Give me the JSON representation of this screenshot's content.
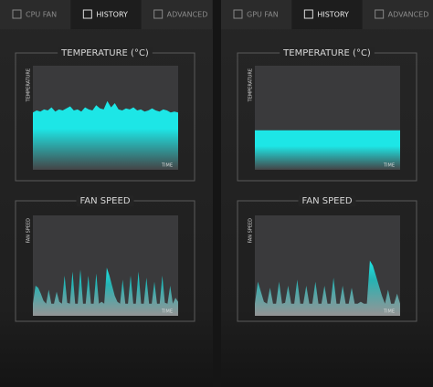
{
  "panels": [
    {
      "tabs": [
        "CPU FAN",
        "HISTORY",
        "ADVANCED"
      ],
      "active": 1
    },
    {
      "tabs": [
        "GPU FAN",
        "HISTORY",
        "ADVANCED"
      ],
      "active": 1
    }
  ],
  "chart_data": [
    {
      "type": "area",
      "title": "TEMPERATURE (°C)",
      "ylabel": "TEMPERATURE",
      "xlabel": "TIME",
      "ylim": [
        0,
        100
      ],
      "color": "#1de6e6",
      "values": [
        55,
        57,
        56,
        58,
        57,
        60,
        56,
        58,
        57,
        59,
        61,
        57,
        58,
        56,
        60,
        58,
        57,
        62,
        59,
        58,
        66,
        60,
        64,
        58,
        57,
        59,
        58,
        60,
        57,
        58,
        56,
        57,
        59,
        57,
        56,
        58,
        57,
        55,
        56,
        55
      ]
    },
    {
      "type": "area",
      "title": "FAN SPEED",
      "ylabel": "FAN SPEED",
      "xlabel": "TIME",
      "ylim": [
        0,
        100
      ],
      "color": "#1de6e6",
      "values": [
        12,
        30,
        28,
        22,
        15,
        12,
        26,
        12,
        12,
        24,
        14,
        12,
        40,
        13,
        12,
        44,
        12,
        12,
        46,
        12,
        12,
        40,
        12,
        12,
        42,
        12,
        14,
        12,
        48,
        40,
        30,
        20,
        14,
        12,
        36,
        12,
        12,
        40,
        12,
        12,
        44,
        12,
        12,
        38,
        12,
        12,
        34,
        12,
        12,
        40,
        13,
        12,
        30,
        12,
        18,
        14
      ]
    },
    {
      "type": "area",
      "title": "TEMPERATURE (°C)",
      "ylabel": "TEMPERATURE",
      "xlabel": "TIME",
      "ylim": [
        0,
        100
      ],
      "color": "#1de6e6",
      "values": [
        38,
        38
      ]
    },
    {
      "type": "area",
      "title": "FAN SPEED",
      "ylabel": "FAN SPEED",
      "xlabel": "TIME",
      "ylim": [
        0,
        100
      ],
      "color": "#1de6e6",
      "values": [
        12,
        34,
        24,
        14,
        12,
        28,
        12,
        12,
        34,
        12,
        13,
        30,
        12,
        12,
        36,
        12,
        12,
        30,
        12,
        12,
        34,
        12,
        12,
        30,
        12,
        12,
        38,
        12,
        12,
        30,
        12,
        12,
        28,
        12,
        12,
        14,
        12,
        12,
        55,
        50,
        40,
        30,
        20,
        12,
        26,
        12,
        12,
        22,
        12
      ]
    }
  ]
}
